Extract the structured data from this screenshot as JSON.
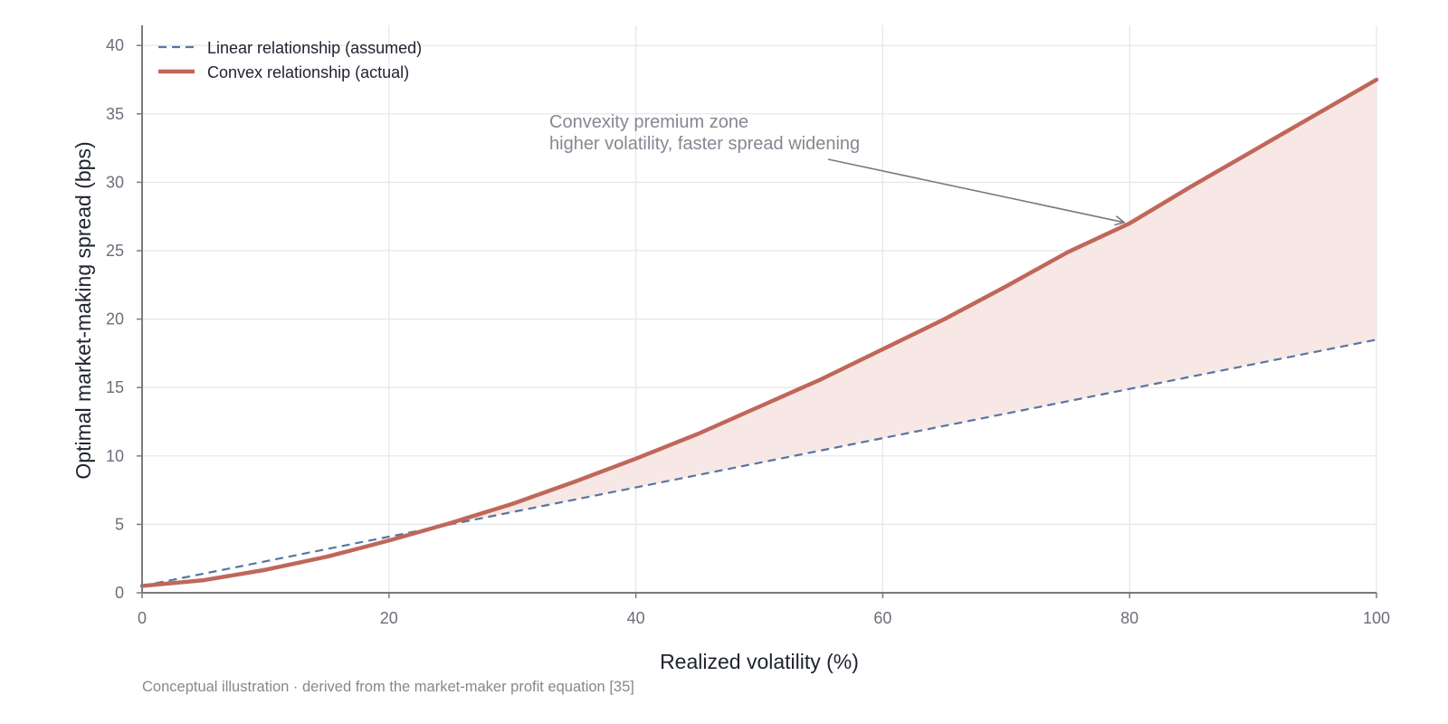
{
  "chart_data": {
    "type": "line",
    "xlabel": "Realized volatility (%)",
    "ylabel": "Optimal market-making spread (bps)",
    "xlim": [
      0,
      100
    ],
    "ylim": [
      0,
      42
    ],
    "xticks": [
      0,
      20,
      40,
      60,
      80,
      100
    ],
    "yticks": [
      0,
      5,
      10,
      15,
      20,
      25,
      30,
      35,
      40
    ],
    "grid": true,
    "legend_position": "top-left",
    "colors": {
      "linear": "#5876a0",
      "convex": "#c0675a",
      "fill": "#f6e6e2",
      "annotation": "#858892"
    },
    "series": [
      {
        "name": "Linear relationship (assumed)",
        "style": "dashed",
        "x": [
          0,
          20,
          40,
          60,
          80,
          100
        ],
        "y": [
          0.5,
          4.1,
          7.7,
          11.3,
          14.9,
          18.5
        ]
      },
      {
        "name": "Convex relationship (actual)",
        "style": "solid",
        "x": [
          0,
          5,
          10,
          15,
          20,
          25,
          30,
          35,
          40,
          45,
          50,
          55,
          60,
          65,
          70,
          75,
          80,
          85,
          90,
          95,
          100
        ],
        "y": [
          0.5,
          0.92,
          1.68,
          2.64,
          3.82,
          5.1,
          6.5,
          8.1,
          9.8,
          11.6,
          13.6,
          15.6,
          17.8,
          20.0,
          22.4,
          24.9,
          27.0,
          29.7,
          32.3,
          34.9,
          37.5
        ]
      }
    ],
    "shaded_region": {
      "between": [
        "Linear relationship (assumed)",
        "Convex relationship (actual)"
      ],
      "from_x": 24
    },
    "annotation": {
      "lines": [
        "Convexity premium zone",
        "higher volatility, faster spread widening"
      ],
      "points_to": {
        "x": 80,
        "y": 27.0
      }
    },
    "caption": "Conceptual illustration · derived from the market-maker profit equation [35]"
  }
}
